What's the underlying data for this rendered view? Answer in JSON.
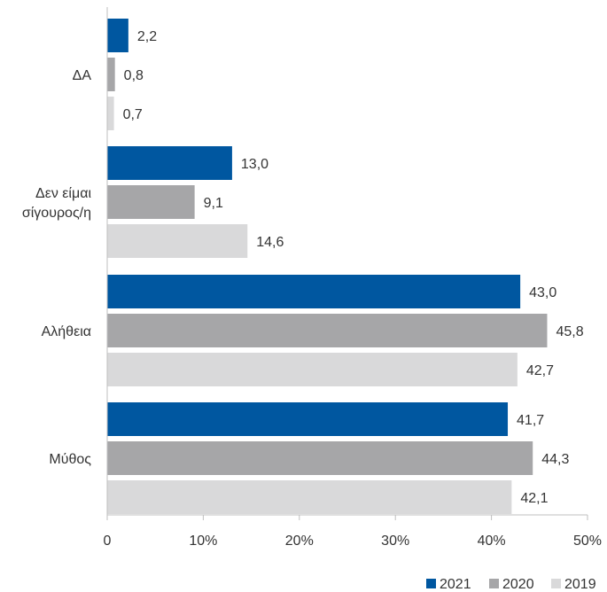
{
  "chart_data": {
    "type": "bar",
    "orientation": "horizontal",
    "categories": [
      "ΔΑ",
      "Δεν είμαι σίγουρος/η",
      "Αλήθεια",
      "Μύθος"
    ],
    "category_lines": [
      [
        "ΔΑ"
      ],
      [
        "Δεν είμαι",
        "σίγουρος/η"
      ],
      [
        "Αλήθεια"
      ],
      [
        "Μύθος"
      ]
    ],
    "series": [
      {
        "name": "2021",
        "color": "#0057A0",
        "values": [
          2.2,
          13.0,
          43.0,
          41.7
        ],
        "labels": [
          "2,2",
          "13,0",
          "43,0",
          "41,7"
        ]
      },
      {
        "name": "2020",
        "color": "#A6A6A8",
        "values": [
          0.8,
          9.1,
          45.8,
          44.3
        ],
        "labels": [
          "0,8",
          "9,1",
          "45,8",
          "44,3"
        ]
      },
      {
        "name": "2019",
        "color": "#D9D9DA",
        "values": [
          0.7,
          14.6,
          42.7,
          42.1
        ],
        "labels": [
          "0,7",
          "14,6",
          "42,7",
          "42,1"
        ]
      }
    ],
    "xlim": [
      0,
      50
    ],
    "xticks": [
      0,
      10,
      20,
      30,
      40,
      50
    ],
    "xtick_labels": [
      "0",
      "10%",
      "20%",
      "30%",
      "40%",
      "50%"
    ],
    "grid": false,
    "legend_position": "bottom-right"
  }
}
